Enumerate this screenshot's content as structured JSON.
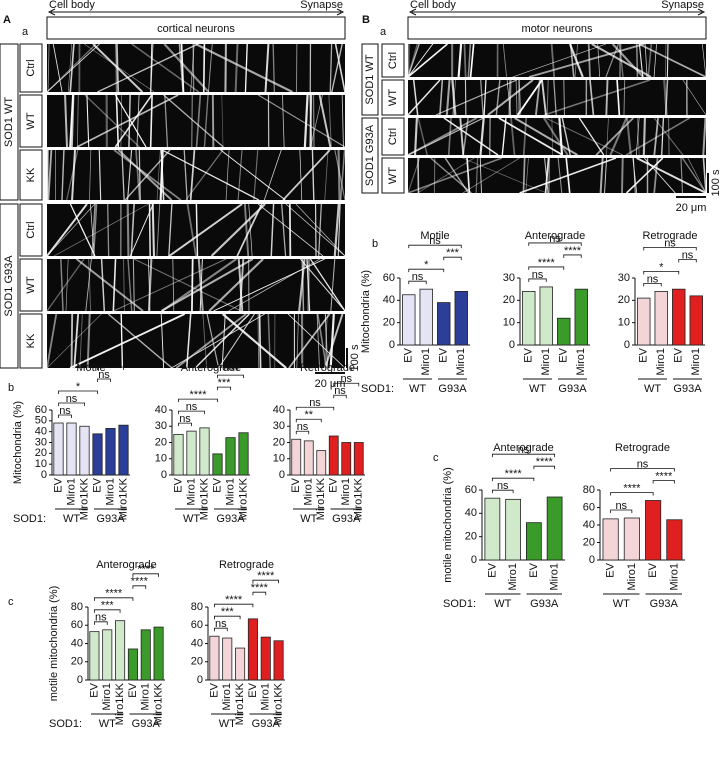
{
  "panels": {
    "A": {
      "label": "A",
      "sub": "a",
      "cell_body": "Cell body",
      "synapse": "Synapse",
      "title": "cortical neurons",
      "groups": [
        {
          "label": "SOD1 WT",
          "rows": [
            "Ctrl",
            "WT",
            "KK"
          ]
        },
        {
          "label": "SOD1 G93A",
          "rows": [
            "Ctrl",
            "WT",
            "KK"
          ]
        }
      ],
      "time_scale": "100 s",
      "space_scale": "20 μm",
      "b": "b",
      "c": "c"
    },
    "B": {
      "label": "B",
      "sub": "a",
      "cell_body": "Cell body",
      "synapse": "Synapse",
      "title": "motor neurons",
      "groups": [
        {
          "label": "SOD1 WT",
          "rows": [
            "Ctrl",
            "WT"
          ]
        },
        {
          "label": "SOD1 G93A",
          "rows": [
            "Ctrl",
            "WT"
          ]
        }
      ],
      "time_scale": "100 s",
      "space_scale": "20 μm",
      "b": "b",
      "c": "c"
    }
  },
  "chart_data": [
    {
      "type": "bar",
      "title": "Motile",
      "ylabel": "Mitochondria (%)",
      "group_title": "SOD1:",
      "categories": [
        "EV",
        "Miro1",
        "Miro1KK",
        "EV",
        "Miro1",
        "Miro1KK"
      ],
      "groups": [
        "WT",
        "G93A"
      ],
      "colors": [
        "#e4e4f4",
        "#e4e4f4",
        "#e4e4f4",
        "#2b3f98",
        "#2b3f98",
        "#2b3f98"
      ],
      "values": [
        48,
        48,
        45,
        38,
        43,
        46
      ],
      "ylim": [
        0,
        60
      ],
      "yticks": [
        0,
        10,
        20,
        30,
        40,
        50,
        60
      ],
      "annotations": [
        {
          "text": "ns",
          "bars": [
            0,
            1
          ]
        },
        {
          "text": "ns",
          "bars": [
            0,
            2
          ]
        },
        {
          "text": "*",
          "bars": [
            0,
            3
          ]
        },
        {
          "text": "ns",
          "bars": [
            3,
            4
          ]
        },
        {
          "text": "*",
          "bars": [
            3,
            5
          ]
        }
      ]
    },
    {
      "type": "bar",
      "title": "Anterograde",
      "categories": [
        "EV",
        "Miro1",
        "Miro1KK",
        "EV",
        "Miro1",
        "Miro1KK"
      ],
      "groups": [
        "WT",
        "G93A"
      ],
      "colors": [
        "#d0e9ca",
        "#d0e9ca",
        "#d0e9ca",
        "#3a9a2a",
        "#3a9a2a",
        "#3a9a2a"
      ],
      "values": [
        25,
        27,
        29,
        13,
        23,
        26
      ],
      "ylim": [
        0,
        40
      ],
      "yticks": [
        0,
        10,
        20,
        30,
        40
      ],
      "annotations": [
        {
          "text": "ns",
          "bars": [
            0,
            1
          ]
        },
        {
          "text": "ns",
          "bars": [
            0,
            2
          ]
        },
        {
          "text": "****",
          "bars": [
            0,
            3
          ]
        },
        {
          "text": "***",
          "bars": [
            3,
            4
          ]
        },
        {
          "text": "****",
          "bars": [
            3,
            5
          ]
        }
      ]
    },
    {
      "type": "bar",
      "title": "Retrograde",
      "categories": [
        "EV",
        "Miro1",
        "Miro1KK",
        "EV",
        "Miro1",
        "Miro1KK"
      ],
      "groups": [
        "WT",
        "G93A"
      ],
      "colors": [
        "#f3d4d7",
        "#f3d4d7",
        "#f3d4d7",
        "#e02020",
        "#e02020",
        "#e02020"
      ],
      "values": [
        22,
        21,
        15,
        24,
        20,
        20
      ],
      "ylim": [
        0,
        40
      ],
      "yticks": [
        0,
        10,
        20,
        30,
        40
      ],
      "annotations": [
        {
          "text": "ns",
          "bars": [
            0,
            1
          ]
        },
        {
          "text": "**",
          "bars": [
            0,
            2
          ]
        },
        {
          "text": "ns",
          "bars": [
            0,
            3
          ]
        },
        {
          "text": "ns",
          "bars": [
            3,
            4
          ]
        },
        {
          "text": "ns",
          "bars": [
            3,
            5
          ]
        }
      ]
    },
    {
      "type": "bar",
      "title": "Anterograde",
      "ylabel": "motile mitochondria (%)",
      "group_title": "SOD1:",
      "categories": [
        "EV",
        "Miro1",
        "Miro1KK",
        "EV",
        "Miro1",
        "Miro1KK"
      ],
      "groups": [
        "WT",
        "G93A"
      ],
      "colors": [
        "#d0e9ca",
        "#d0e9ca",
        "#d0e9ca",
        "#3a9a2a",
        "#3a9a2a",
        "#3a9a2a"
      ],
      "values": [
        53,
        55,
        65,
        34,
        55,
        58
      ],
      "ylim": [
        0,
        80
      ],
      "yticks": [
        0,
        20,
        40,
        60,
        80
      ],
      "annotations": [
        {
          "text": "ns",
          "bars": [
            0,
            1
          ]
        },
        {
          "text": "***",
          "bars": [
            0,
            2
          ]
        },
        {
          "text": "****",
          "bars": [
            0,
            3
          ]
        },
        {
          "text": "****",
          "bars": [
            3,
            4
          ]
        },
        {
          "text": "****",
          "bars": [
            3,
            5
          ]
        }
      ]
    },
    {
      "type": "bar",
      "title": "Retrograde",
      "categories": [
        "EV",
        "Miro1",
        "Miro1KK",
        "EV",
        "Miro1",
        "Miro1KK"
      ],
      "groups": [
        "WT",
        "G93A"
      ],
      "colors": [
        "#f3d4d7",
        "#f3d4d7",
        "#f3d4d7",
        "#e02020",
        "#e02020",
        "#e02020"
      ],
      "values": [
        48,
        46,
        35,
        67,
        47,
        43
      ],
      "ylim": [
        0,
        80
      ],
      "yticks": [
        0,
        20,
        40,
        60,
        80
      ],
      "annotations": [
        {
          "text": "ns",
          "bars": [
            0,
            1
          ]
        },
        {
          "text": "***",
          "bars": [
            0,
            2
          ]
        },
        {
          "text": "****",
          "bars": [
            0,
            3
          ]
        },
        {
          "text": "****",
          "bars": [
            3,
            4
          ]
        },
        {
          "text": "****",
          "bars": [
            3,
            5
          ]
        }
      ]
    },
    {
      "type": "bar",
      "title": "Motile",
      "ylabel": "Mitochondria (%)",
      "group_title": "SOD1:",
      "categories": [
        "EV",
        "Miro1",
        "EV",
        "Miro1"
      ],
      "groups": [
        "WT",
        "G93A"
      ],
      "colors": [
        "#e4e4f4",
        "#e4e4f4",
        "#2b3f98",
        "#2b3f98"
      ],
      "values": [
        45,
        50,
        38,
        48
      ],
      "ylim": [
        0,
        60
      ],
      "yticks": [
        0,
        20,
        40,
        60
      ],
      "annotations": [
        {
          "text": "ns",
          "bars": [
            0,
            1
          ]
        },
        {
          "text": "*",
          "bars": [
            0,
            2
          ]
        },
        {
          "text": "***",
          "bars": [
            2,
            3
          ]
        },
        {
          "text": "ns",
          "bars": [
            0,
            3
          ]
        }
      ]
    },
    {
      "type": "bar",
      "title": "Anterograde",
      "categories": [
        "EV",
        "Miro1",
        "EV",
        "Miro1"
      ],
      "groups": [
        "WT",
        "G93A"
      ],
      "colors": [
        "#d0e9ca",
        "#d0e9ca",
        "#3a9a2a",
        "#3a9a2a"
      ],
      "values": [
        24,
        26,
        12,
        25
      ],
      "ylim": [
        0,
        30
      ],
      "yticks": [
        0,
        10,
        20,
        30
      ],
      "annotations": [
        {
          "text": "ns",
          "bars": [
            0,
            1
          ]
        },
        {
          "text": "****",
          "bars": [
            0,
            2
          ]
        },
        {
          "text": "****",
          "bars": [
            2,
            3
          ]
        },
        {
          "text": "ns",
          "bars": [
            0,
            3
          ]
        }
      ]
    },
    {
      "type": "bar",
      "title": "Retrograde",
      "categories": [
        "EV",
        "Miro1",
        "EV",
        "Miro1"
      ],
      "groups": [
        "WT",
        "G93A"
      ],
      "colors": [
        "#f3d4d7",
        "#f3d4d7",
        "#e02020",
        "#e02020"
      ],
      "values": [
        21,
        24,
        25,
        22
      ],
      "ylim": [
        0,
        30
      ],
      "yticks": [
        0,
        10,
        20,
        30
      ],
      "annotations": [
        {
          "text": "ns",
          "bars": [
            0,
            1
          ]
        },
        {
          "text": "*",
          "bars": [
            0,
            2
          ]
        },
        {
          "text": "ns",
          "bars": [
            2,
            3
          ]
        },
        {
          "text": "ns",
          "bars": [
            0,
            3
          ]
        }
      ]
    },
    {
      "type": "bar",
      "title": "Anterograde",
      "ylabel": "motile mitochondria (%)",
      "group_title": "SOD1:",
      "categories": [
        "EV",
        "Miro1",
        "EV",
        "Miro1"
      ],
      "groups": [
        "WT",
        "G93A"
      ],
      "colors": [
        "#d0e9ca",
        "#d0e9ca",
        "#3a9a2a",
        "#3a9a2a"
      ],
      "values": [
        53,
        52,
        32,
        54
      ],
      "ylim": [
        0,
        60
      ],
      "yticks": [
        0,
        20,
        40,
        60
      ],
      "annotations": [
        {
          "text": "ns",
          "bars": [
            0,
            1
          ]
        },
        {
          "text": "****",
          "bars": [
            0,
            2
          ]
        },
        {
          "text": "****",
          "bars": [
            2,
            3
          ]
        },
        {
          "text": "ns",
          "bars": [
            0,
            3
          ]
        }
      ]
    },
    {
      "type": "bar",
      "title": "Retrograde",
      "categories": [
        "EV",
        "Miro1",
        "EV",
        "Miro1"
      ],
      "groups": [
        "WT",
        "G93A"
      ],
      "colors": [
        "#f3d4d7",
        "#f3d4d7",
        "#e02020",
        "#e02020"
      ],
      "values": [
        47,
        48,
        68,
        46
      ],
      "ylim": [
        0,
        80
      ],
      "yticks": [
        0,
        20,
        40,
        60,
        80
      ],
      "annotations": [
        {
          "text": "ns",
          "bars": [
            0,
            1
          ]
        },
        {
          "text": "****",
          "bars": [
            0,
            2
          ]
        },
        {
          "text": "****",
          "bars": [
            2,
            3
          ]
        },
        {
          "text": "ns",
          "bars": [
            0,
            3
          ]
        }
      ]
    }
  ]
}
